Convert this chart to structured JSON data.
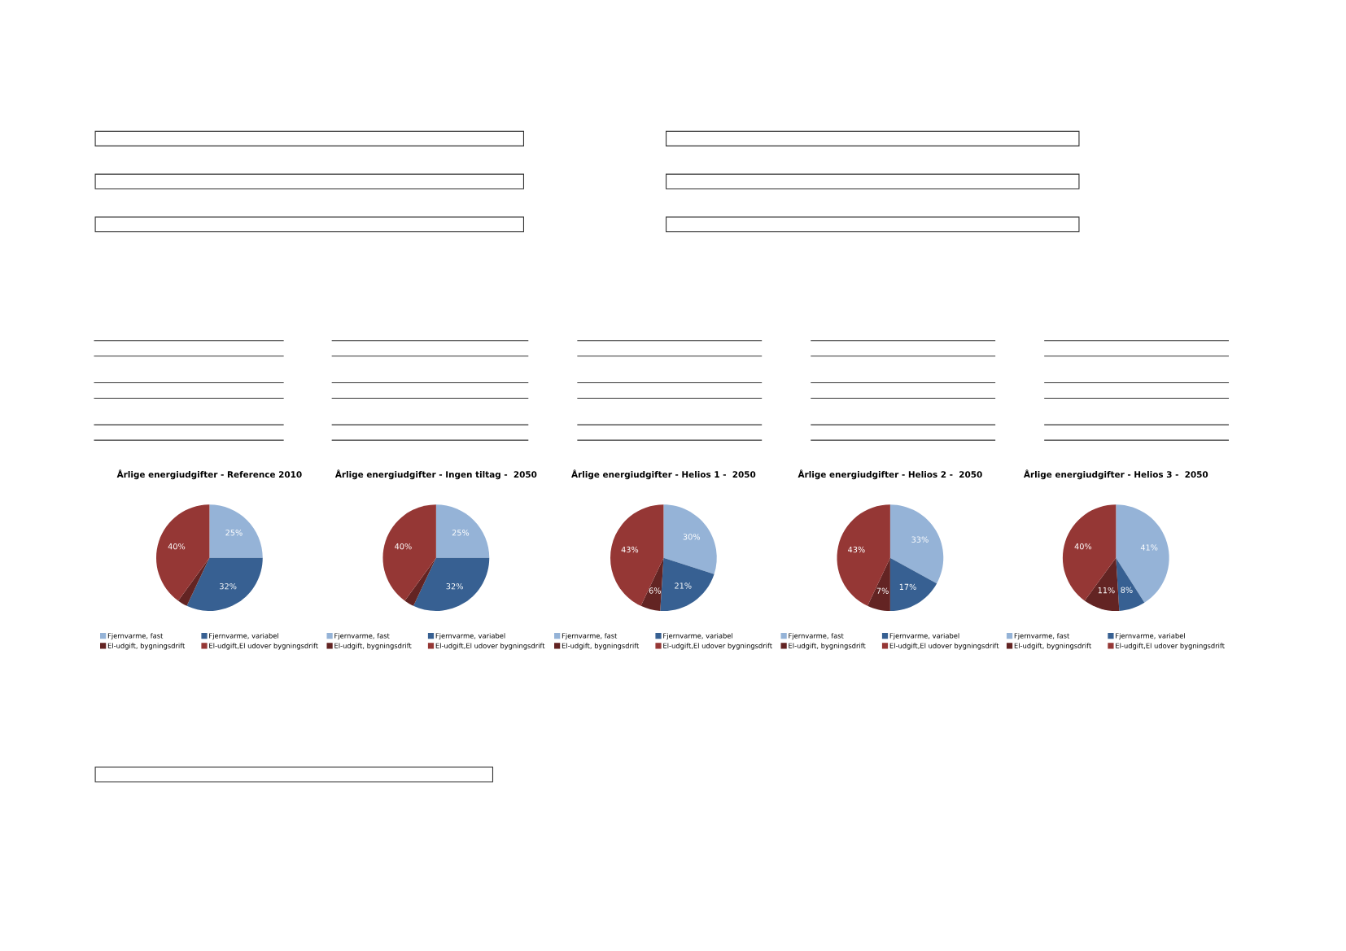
{
  "chart_data": [
    {
      "type": "pie",
      "title": "Årlige energiudgifter - Reference 2010",
      "categories": [
        "Fjernvarme, fast",
        "Fjernvarme, variabel",
        "El-udgift, bygningsdrift",
        "El-udgift,El udover bygningsdrift"
      ],
      "values": [
        25,
        32,
        3,
        40
      ],
      "colors": [
        "#95b3d7",
        "#376092",
        "#632423",
        "#953735"
      ],
      "value_labels": [
        "25%",
        "32%",
        null,
        "40%"
      ],
      "legend": "bottom"
    },
    {
      "type": "pie",
      "title": "Årlige energiudgifter - Ingen tiltag -  2050",
      "categories": [
        "Fjernvarme, fast",
        "Fjernvarme, variabel",
        "El-udgift, bygningsdrift",
        "El-udgift,El udover bygningsdrift"
      ],
      "values": [
        25,
        32,
        3,
        40
      ],
      "colors": [
        "#95b3d7",
        "#376092",
        "#632423",
        "#953735"
      ],
      "value_labels": [
        "25%",
        "32%",
        null,
        "40%"
      ],
      "legend": "bottom"
    },
    {
      "type": "pie",
      "title": "Årlige energiudgifter - Helios 1 -  2050",
      "categories": [
        "Fjernvarme, fast",
        "Fjernvarme, variabel",
        "El-udgift, bygningsdrift",
        "El-udgift,El udover bygningsdrift"
      ],
      "values": [
        30,
        21,
        6,
        43
      ],
      "colors": [
        "#95b3d7",
        "#376092",
        "#632423",
        "#953735"
      ],
      "value_labels": [
        "30%",
        "21%",
        "6%",
        "43%"
      ],
      "legend": "bottom"
    },
    {
      "type": "pie",
      "title": "Årlige energiudgifter - Helios 2 -  2050",
      "categories": [
        "Fjernvarme, fast",
        "Fjernvarme, variabel",
        "El-udgift, bygningsdrift",
        "El-udgift,El udover bygningsdrift"
      ],
      "values": [
        33,
        17,
        7,
        43
      ],
      "colors": [
        "#95b3d7",
        "#376092",
        "#632423",
        "#953735"
      ],
      "value_labels": [
        "33%",
        "17%",
        "7%",
        "43%"
      ],
      "legend": "bottom"
    },
    {
      "type": "pie",
      "title": "Årlige energiudgifter - Helios 3 -  2050",
      "categories": [
        "Fjernvarme, fast",
        "Fjernvarme, variabel",
        "El-udgift, bygningsdrift",
        "El-udgift,El udover bygningsdrift"
      ],
      "values": [
        41,
        8,
        11,
        40
      ],
      "colors": [
        "#95b3d7",
        "#376092",
        "#632423",
        "#953735"
      ],
      "value_labels": [
        "41%",
        "8%",
        "11%",
        "40%"
      ],
      "legend": "bottom"
    }
  ]
}
